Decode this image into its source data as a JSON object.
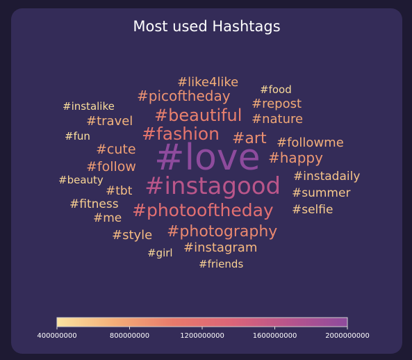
{
  "chart_data": {
    "type": "wordcloud",
    "title": "Most used Hashtags",
    "words": [
      {
        "text": "#love",
        "value": 2000000000
      },
      {
        "text": "#instagood",
        "value": 1650000000
      },
      {
        "text": "#photooftheday",
        "value": 1200000000
      },
      {
        "text": "#fashion",
        "value": 1100000000
      },
      {
        "text": "#beautiful",
        "value": 1000000000
      },
      {
        "text": "#photography",
        "value": 950000000
      },
      {
        "text": "#art",
        "value": 900000000
      },
      {
        "text": "#picoftheday",
        "value": 880000000
      },
      {
        "text": "#happy",
        "value": 850000000
      },
      {
        "text": "#follow",
        "value": 820000000
      },
      {
        "text": "#cute",
        "value": 800000000
      },
      {
        "text": "#nature",
        "value": 760000000
      },
      {
        "text": "#repost",
        "value": 740000000
      },
      {
        "text": "#like4like",
        "value": 720000000
      },
      {
        "text": "#followme",
        "value": 700000000
      },
      {
        "text": "#travel",
        "value": 680000000
      },
      {
        "text": "#instagram",
        "value": 660000000
      },
      {
        "text": "#style",
        "value": 640000000
      },
      {
        "text": "#tbt",
        "value": 620000000
      },
      {
        "text": "#me",
        "value": 600000000
      },
      {
        "text": "#instadaily",
        "value": 580000000
      },
      {
        "text": "#summer",
        "value": 560000000
      },
      {
        "text": "#selfie",
        "value": 540000000
      },
      {
        "text": "#fitness",
        "value": 520000000
      },
      {
        "text": "#friends",
        "value": 500000000
      },
      {
        "text": "#beauty",
        "value": 480000000
      },
      {
        "text": "#girl",
        "value": 460000000
      },
      {
        "text": "#food",
        "value": 450000000
      },
      {
        "text": "#instalike",
        "value": 430000000
      },
      {
        "text": "#fun",
        "value": 420000000
      }
    ],
    "colorbar": {
      "min": 400000000,
      "max": 2000000000,
      "ticks": [
        "400000000",
        "800000000",
        "1200000000",
        "1600000000",
        "2000000000"
      ],
      "colors": [
        "#fbe3a0",
        "#f3ae78",
        "#e87a6b",
        "#dc6578",
        "#b7548c",
        "#8e4b9d"
      ]
    }
  }
}
